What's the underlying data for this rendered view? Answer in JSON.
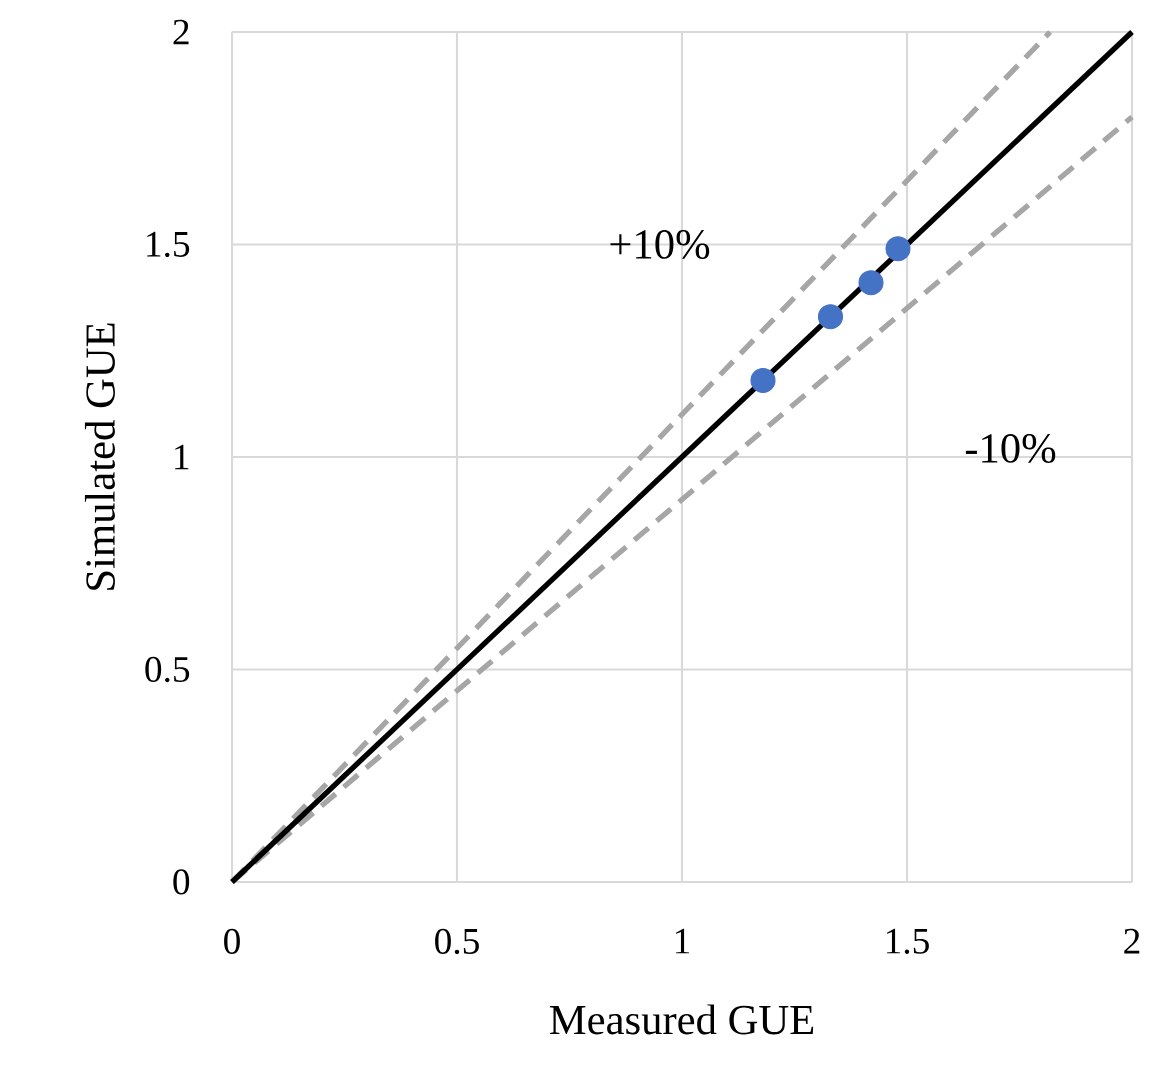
{
  "chart_data": {
    "type": "scatter",
    "xlabel": "Measured GUE",
    "ylabel": "Simulated GUE",
    "xlim": [
      0,
      2
    ],
    "ylim": [
      0,
      2
    ],
    "xticks": [
      0,
      0.5,
      1,
      1.5,
      2
    ],
    "yticks": [
      0,
      0.5,
      1,
      1.5,
      2
    ],
    "grid": true,
    "series": [
      {
        "type": "line",
        "line_style": "dashed",
        "marker": "none",
        "color": "#a6a6a6",
        "x": [
          0,
          1.818
        ],
        "values": [
          0,
          2
        ]
      },
      {
        "type": "line",
        "line_style": "dashed",
        "marker": "none",
        "color": "#a6a6a6",
        "x": [
          0,
          2
        ],
        "values": [
          0,
          1.8
        ]
      },
      {
        "type": "line",
        "line_style": "solid",
        "marker": "none",
        "color": "#000000",
        "x": [
          0,
          2
        ],
        "values": [
          0,
          2
        ]
      },
      {
        "marker": "circle",
        "color": "#4472c4",
        "x": [
          1.18,
          1.33,
          1.42,
          1.48
        ],
        "values": [
          1.18,
          1.33,
          1.41,
          1.49
        ]
      }
    ],
    "annotations": [
      "+10%",
      "-10%"
    ]
  }
}
